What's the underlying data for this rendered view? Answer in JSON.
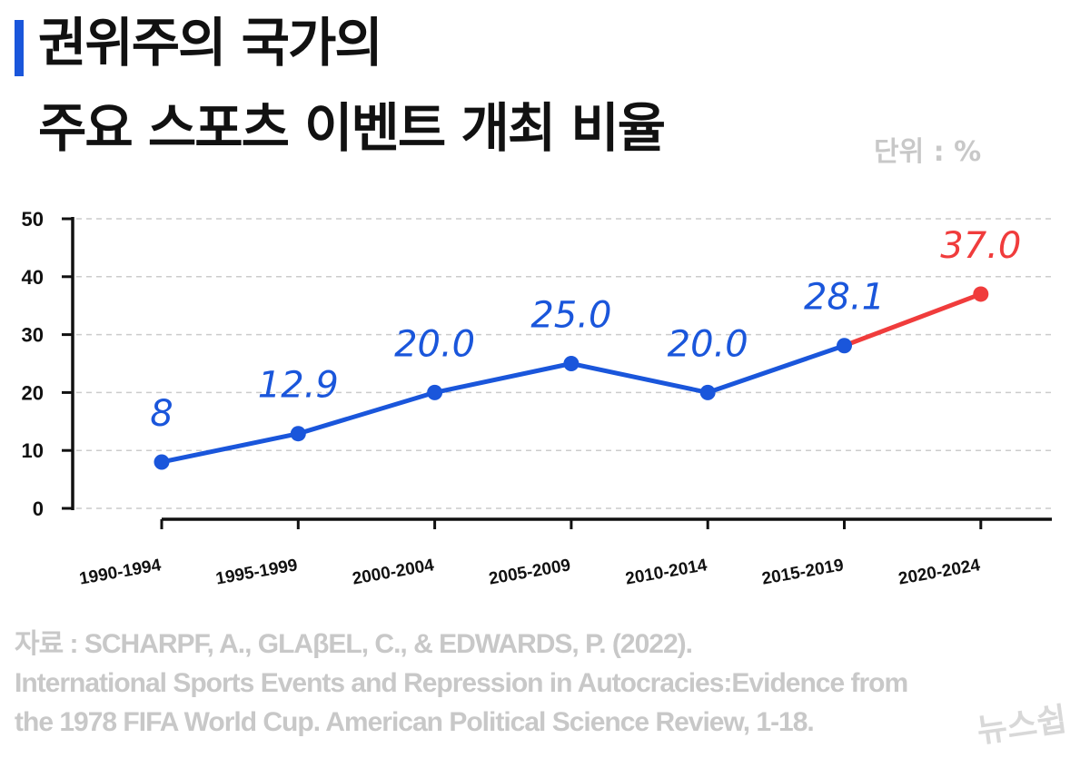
{
  "header": {
    "title_line1": "권위주의 국가의",
    "title_line2": "주요 스포츠 이벤트 개최 비율",
    "unit": "단위 : %"
  },
  "source": {
    "line1": "자료 : SCHARPF, A., GLAβEL, C., & EDWARDS, P. (2022).",
    "line2": "International Sports Events and Repression in Autocracies:Evidence from",
    "line3": "the 1978 FIFA World Cup. American Political Science Review, 1-18."
  },
  "logo": "뉴스쉽",
  "chart_data": {
    "type": "line",
    "categories": [
      "1990-1994",
      "1995-1999",
      "2000-2004",
      "2005-2009",
      "2010-2014",
      "2015-2019",
      "2020-2024"
    ],
    "values": [
      8,
      12.9,
      20.0,
      25.0,
      20.0,
      28.1,
      37.0
    ],
    "labels": [
      "8",
      "12.9",
      "20.0",
      "25.0",
      "20.0",
      "28.1",
      "37.0"
    ],
    "yticks": [
      "0",
      "10",
      "20",
      "30",
      "40",
      "50"
    ],
    "ylim": [
      0,
      50
    ],
    "grid": true,
    "colors": {
      "main": "#1a56db",
      "highlight": "#f03c3c",
      "grid": "#cccccc",
      "axis": "#111111"
    }
  }
}
